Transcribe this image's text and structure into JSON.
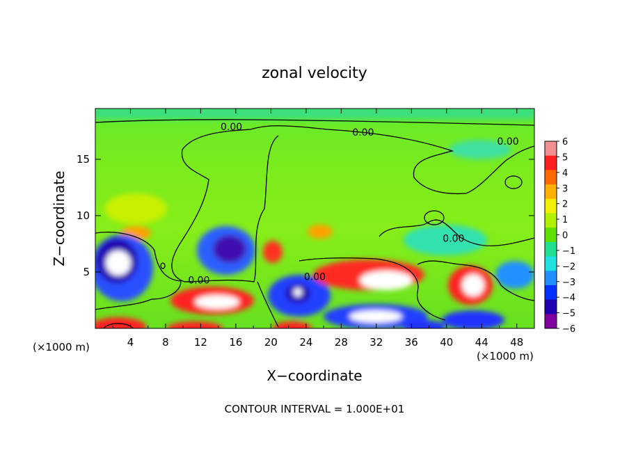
{
  "chart_data": {
    "type": "heatmap",
    "title": "zonal velocity",
    "xlabel": "X−coordinate",
    "ylabel": "Z−coordinate",
    "x_unit_left": "(×1000 m)",
    "x_unit_right": "(×1000 m)",
    "footer": "CONTOUR INTERVAL = 1.000E+01",
    "xlim": [
      0,
      50
    ],
    "ylim": [
      0,
      19.5
    ],
    "x_ticks": [
      4,
      8,
      12,
      16,
      20,
      24,
      28,
      32,
      36,
      40,
      44,
      48
    ],
    "y_ticks": [
      5,
      10,
      15
    ],
    "colorbar": {
      "range": [
        -6,
        6
      ],
      "ticks": [
        6,
        5,
        4,
        3,
        2,
        1,
        0,
        -1,
        -2,
        -3,
        -4,
        -5,
        -6
      ],
      "tick_labels": [
        "6",
        "5",
        "4",
        "3",
        "2",
        "1",
        "0",
        "−1",
        "−2",
        "−3",
        "−4",
        "−5",
        "−6"
      ],
      "colors": [
        "#f09090",
        "#ff2020",
        "#ff6a00",
        "#ffb000",
        "#f0f000",
        "#b0f000",
        "#60e000",
        "#20e090",
        "#20e0e0",
        "#2090ff",
        "#0030ff",
        "#2000b0",
        "#8000a0"
      ]
    },
    "contour_labels": [
      {
        "text": "0.00",
        "x": 15.5,
        "y": 17.9
      },
      {
        "text": "0.00",
        "x": 30.5,
        "y": 17.4
      },
      {
        "text": "0.00",
        "x": 47.0,
        "y": 16.6
      },
      {
        "text": "0.00",
        "x": 40.8,
        "y": 8.0
      },
      {
        "text": "0.00",
        "x": 11.8,
        "y": 4.3
      },
      {
        "text": "0.00",
        "x": 25.0,
        "y": 4.6
      }
    ],
    "features": [
      {
        "kind": "min",
        "x": 3.0,
        "y": 6.2,
        "value": -6
      },
      {
        "kind": "min",
        "x": 15.3,
        "y": 7.5,
        "value": -5
      },
      {
        "kind": "min",
        "x": 23.0,
        "y": 3.2,
        "value": -5
      },
      {
        "kind": "min",
        "x": 30.0,
        "y": 1.5,
        "value": -4
      },
      {
        "kind": "min",
        "x": 43.5,
        "y": 0.6,
        "value": -5
      },
      {
        "kind": "max",
        "x": 14.0,
        "y": 2.6,
        "value": 6
      },
      {
        "kind": "max",
        "x": 33.5,
        "y": 4.2,
        "value": 6
      },
      {
        "kind": "max",
        "x": 42.0,
        "y": 4.3,
        "value": 6
      },
      {
        "kind": "max",
        "x": 20.2,
        "y": 7.0,
        "value": 4
      },
      {
        "kind": "max",
        "x": 10.0,
        "y": 0.3,
        "value": 6
      },
      {
        "kind": "max",
        "x": 22.5,
        "y": 0.3,
        "value": 6
      },
      {
        "kind": "max",
        "x": 3.0,
        "y": 0.5,
        "value": 6
      }
    ]
  }
}
